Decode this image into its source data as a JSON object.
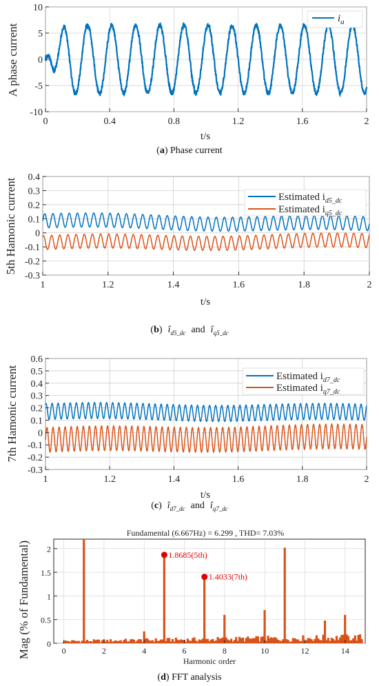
{
  "chart_data": [
    {
      "id": "a",
      "type": "line",
      "xlabel": "t/s",
      "ylabel": "A phase current",
      "xlim": [
        0,
        2
      ],
      "ylim": [
        -10,
        10
      ],
      "xticks": [
        "0",
        "0.4",
        "0.8",
        "1.2",
        "1.6",
        "2"
      ],
      "yticks": [
        "-10",
        "-5",
        "0",
        "5",
        "10"
      ],
      "grid": true,
      "legend_position": "top-right",
      "series": [
        {
          "name": "i",
          "name_subscript": "a",
          "color": "#0072BD",
          "shape": "sinusoid",
          "amplitude": 6.5,
          "offset": 0,
          "frequency_hz": 6.667,
          "start_value": 0
        }
      ],
      "caption": {
        "prefix": "(",
        "letter": "a",
        "suffix": ") Phase current"
      }
    },
    {
      "id": "b",
      "type": "line",
      "xlabel": "t/s",
      "ylabel": "5th Hamonic current",
      "xlim": [
        1,
        2
      ],
      "ylim": [
        -0.3,
        0.4
      ],
      "xticks": [
        "1",
        "1.2",
        "1.4",
        "1.6",
        "1.8",
        "2"
      ],
      "yticks": [
        "-0.3",
        "-0.2",
        "-0.1",
        "0",
        "0.1",
        "0.2",
        "0.3",
        "0.4"
      ],
      "grid": true,
      "legend_position": "top-right",
      "series": [
        {
          "name": "Estimated i",
          "name_subscript": "d5_dc",
          "color": "#0072BD",
          "shape": "sinusoid",
          "mean_start": 0.085,
          "mean_end": 0.06,
          "amplitude": 0.05,
          "frequency_hz": 40
        },
        {
          "name": "Estimated i",
          "name_subscript": "q5_dc",
          "color": "#D95319",
          "shape": "sinusoid",
          "mean_start": -0.07,
          "mean_end": -0.06,
          "amplitude": 0.05,
          "frequency_hz": 40
        }
      ],
      "caption": {
        "prefix": "(",
        "letter": "b",
        "suffix": ")",
        "text1": "î",
        "sub1": "d5_dc",
        "and": "and",
        "text2": "î",
        "sub2": "q5_dc"
      }
    },
    {
      "id": "c",
      "type": "line",
      "xlabel": "t/s",
      "ylabel": "7th Hamonic current",
      "xlim": [
        1,
        2
      ],
      "ylim": [
        -0.3,
        0.6
      ],
      "xticks": [
        "1",
        "1.2",
        "1.4",
        "1.6",
        "1.8",
        "2"
      ],
      "yticks": [
        "-0.3",
        "-0.2",
        "-0.1",
        "0",
        "0.1",
        "0.2",
        "0.3",
        "0.4",
        "0.5",
        "0.6"
      ],
      "grid": true,
      "legend_position": "top-right",
      "series": [
        {
          "name": "Estimated i",
          "name_subscript": "q7_dc",
          "color": "#D95319",
          "shape": "sinusoid",
          "mean_start": -0.06,
          "mean_end": -0.04,
          "amplitude": 0.1,
          "frequency_hz": 53
        },
        {
          "name": "Estimated i",
          "name_subscript": "d7_dc",
          "color": "#0072BD",
          "shape": "sinusoid",
          "mean_start": 0.17,
          "mean_end": 0.16,
          "amplitude": 0.065,
          "frequency_hz": 53
        }
      ],
      "caption": {
        "prefix": "(",
        "letter": "c",
        "suffix": ")",
        "text1": "î",
        "sub1": "d7_dc",
        "and": "and",
        "text2": "î",
        "sub2": "q7_dc"
      }
    },
    {
      "id": "d",
      "type": "bar",
      "title": "Fundamental (6.667Hz) = 6.299 , THD= 7.03%",
      "xlabel": "Harmonic order",
      "ylabel": "Mag (% of Fundamental)",
      "xlim": [
        -0.5,
        15
      ],
      "ylim": [
        0,
        2.2
      ],
      "xticks": [
        "0",
        "2",
        "4",
        "6",
        "8",
        "10",
        "12",
        "14"
      ],
      "yticks": [
        "0",
        "0.5",
        "1",
        "1.5",
        "2"
      ],
      "grid": true,
      "color": "#D95319",
      "bar_step": 0.0833,
      "bars": [
        {
          "x": 1,
          "y": 2.2
        },
        {
          "x": 5,
          "y": 1.8685
        },
        {
          "x": 7,
          "y": 1.4033
        },
        {
          "x": 11,
          "y": 2.02
        },
        {
          "x": 10,
          "y": 0.7
        },
        {
          "x": 8,
          "y": 0.6
        },
        {
          "x": 4,
          "y": 0.25
        },
        {
          "x": 13,
          "y": 0.48
        },
        {
          "x": 14,
          "y": 0.6
        }
      ],
      "noise_floor": 0.08,
      "annotations": [
        {
          "x": 5,
          "y": 1.8685,
          "text": "1.8685(5th)"
        },
        {
          "x": 7,
          "y": 1.4033,
          "text": "1.4033(7th)"
        }
      ],
      "caption": {
        "prefix": "(",
        "letter": "d",
        "suffix": ") FFT analysis"
      }
    }
  ]
}
